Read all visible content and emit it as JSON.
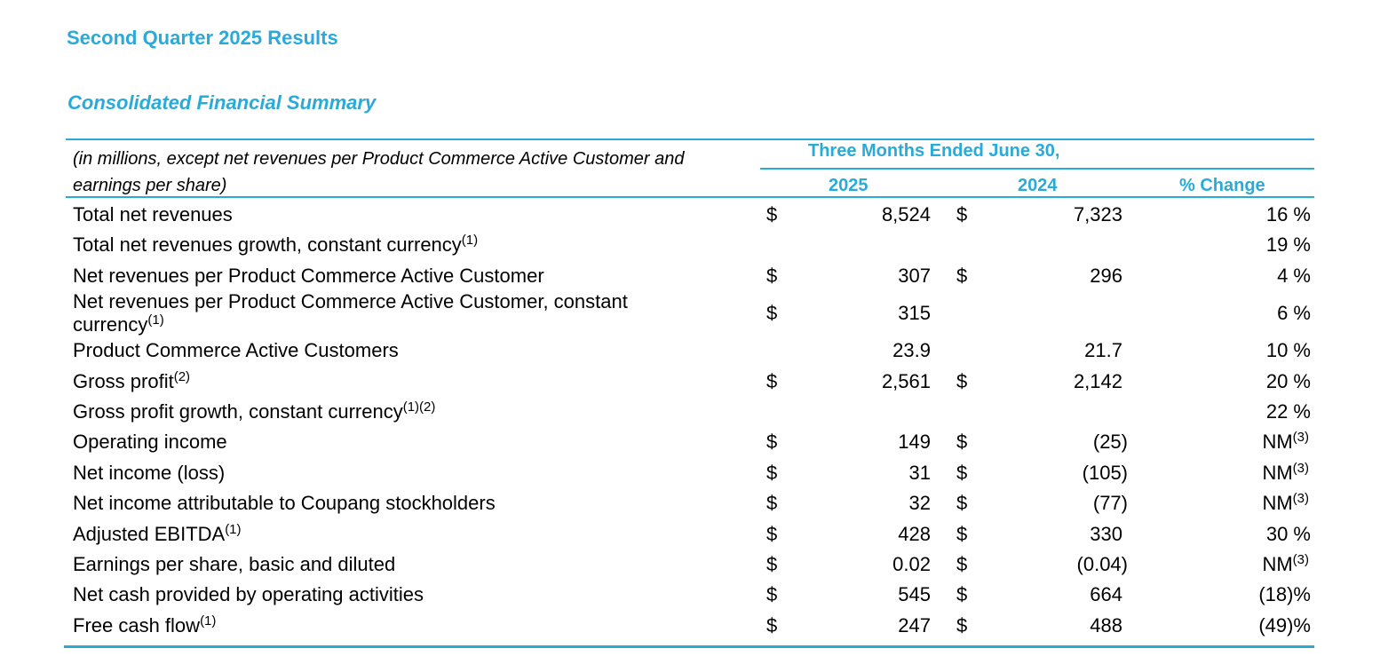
{
  "page_title": "Second Quarter 2025 Results",
  "section_title": "Consolidated Financial Summary",
  "table": {
    "units_note": "(in millions, except net revenues per Product Commerce Active Customer and earnings per share)",
    "period_header": "Three Months Ended June 30,",
    "columns": [
      "2025",
      "2024",
      "% Change"
    ],
    "rows": [
      {
        "label": "Total net revenues",
        "note": "",
        "cur_2025": "$",
        "v_2025": "8,524",
        "cur_2024": "$",
        "v_2024": "7,323",
        "change": "16 %",
        "change_note": ""
      },
      {
        "label": "Total net revenues growth, constant currency",
        "note": "(1)",
        "cur_2025": "",
        "v_2025": "",
        "cur_2024": "",
        "v_2024": "",
        "change": "19 %",
        "change_note": ""
      },
      {
        "label": "Net revenues per Product Commerce Active Customer",
        "note": "",
        "cur_2025": "$",
        "v_2025": "307",
        "cur_2024": "$",
        "v_2024": "296",
        "change": "4 %",
        "change_note": ""
      },
      {
        "label": "Net revenues per Product Commerce Active Customer, constant currency",
        "note": "(1)",
        "cur_2025": "$",
        "v_2025": "315",
        "cur_2024": "",
        "v_2024": "",
        "change": "6 %",
        "change_note": ""
      },
      {
        "label": "Product Commerce Active Customers",
        "note": "",
        "cur_2025": "",
        "v_2025": "23.9",
        "cur_2024": "",
        "v_2024": "21.7",
        "change": "10 %",
        "change_note": ""
      },
      {
        "label": "Gross profit",
        "note": "(2)",
        "cur_2025": "$",
        "v_2025": "2,561",
        "cur_2024": "$",
        "v_2024": "2,142",
        "change": "20 %",
        "change_note": ""
      },
      {
        "label": "Gross profit growth, constant currency",
        "note": "(1)(2)",
        "cur_2025": "",
        "v_2025": "",
        "cur_2024": "",
        "v_2024": "",
        "change": "22 %",
        "change_note": ""
      },
      {
        "label": "Operating income",
        "note": "",
        "cur_2025": "$",
        "v_2025": "149",
        "cur_2024": "$",
        "v_2024": "(25)",
        "change": "NM",
        "change_note": "(3)"
      },
      {
        "label": "Net income (loss)",
        "note": "",
        "cur_2025": "$",
        "v_2025": "31",
        "cur_2024": "$",
        "v_2024": "(105)",
        "change": "NM",
        "change_note": "(3)"
      },
      {
        "label": "Net income attributable to Coupang stockholders",
        "note": "",
        "cur_2025": "$",
        "v_2025": "32",
        "cur_2024": "$",
        "v_2024": "(77)",
        "change": "NM",
        "change_note": "(3)"
      },
      {
        "label": "Adjusted EBITDA",
        "note": "(1)",
        "cur_2025": "$",
        "v_2025": "428",
        "cur_2024": "$",
        "v_2024": "330",
        "change": "30 %",
        "change_note": ""
      },
      {
        "label": "Earnings per share, basic and diluted",
        "note": "",
        "cur_2025": "$",
        "v_2025": "0.02",
        "cur_2024": "$",
        "v_2024": "(0.04)",
        "change": "NM",
        "change_note": "(3)"
      },
      {
        "label": "Net cash provided by operating activities",
        "note": "",
        "cur_2025": "$",
        "v_2025": "545",
        "cur_2024": "$",
        "v_2024": "664",
        "change": "(18)%",
        "change_note": ""
      },
      {
        "label": "Free cash flow",
        "note": "(1)",
        "cur_2025": "$",
        "v_2025": "247",
        "cur_2024": "$",
        "v_2024": "488",
        "change": "(49)%",
        "change_note": ""
      }
    ]
  },
  "colors": {
    "accent": "#2aaad9",
    "text": "#000000"
  }
}
